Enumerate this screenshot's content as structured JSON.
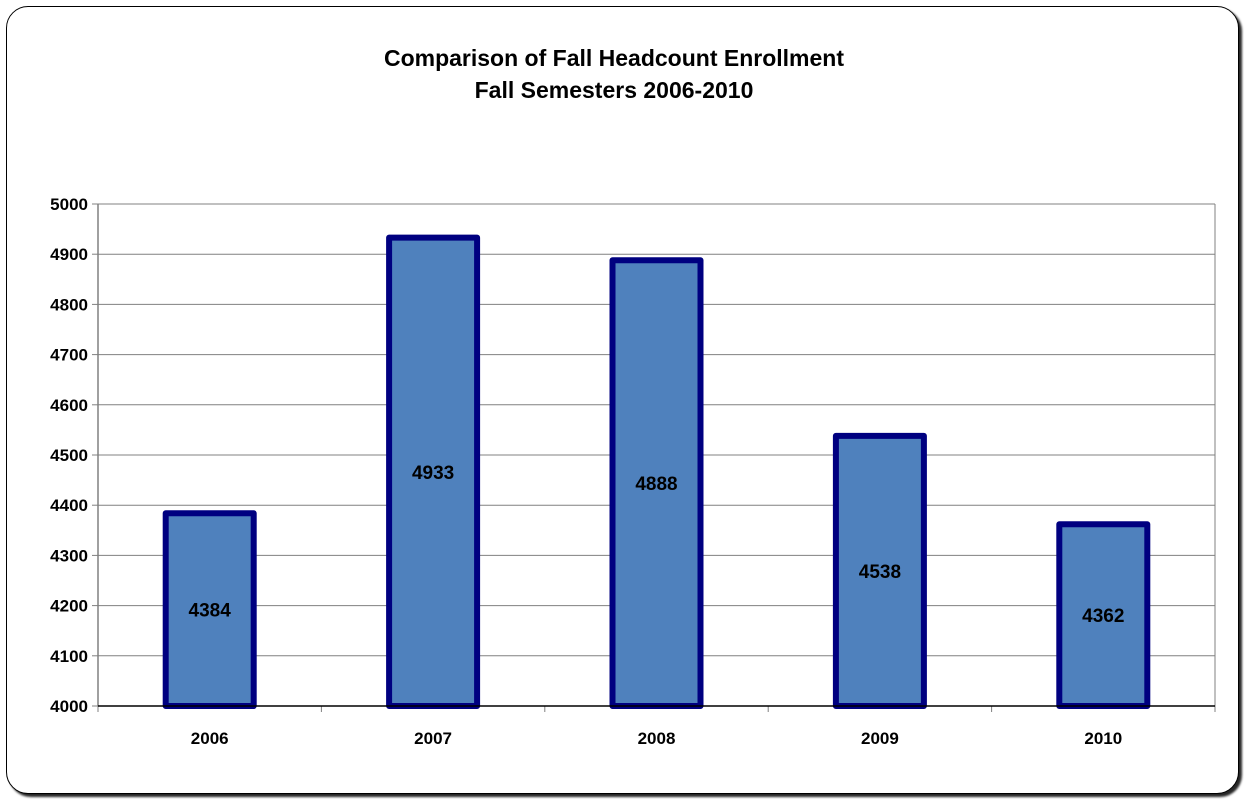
{
  "chart_data": {
    "type": "bar",
    "title": "Comparison of Fall Headcount Enrollment",
    "subtitle": "Fall Semesters 2006-2010",
    "xlabel": "",
    "ylabel": "",
    "categories": [
      "2006",
      "2007",
      "2008",
      "2009",
      "2010"
    ],
    "values": [
      4384,
      4933,
      4888,
      4538,
      4362
    ],
    "data_labels": [
      "4384",
      "4933",
      "4888",
      "4538",
      "4362"
    ],
    "ylim": [
      4000,
      5000
    ],
    "y_ticks": [
      "4000",
      "4100",
      "4200",
      "4300",
      "4400",
      "4500",
      "4600",
      "4700",
      "4800",
      "4900",
      "5000"
    ],
    "grid": true,
    "legend": "none",
    "colors": {
      "bar_fill": "#4F81BD",
      "bar_border": "#000080",
      "grid": "#808080",
      "axis": "#808080"
    }
  }
}
